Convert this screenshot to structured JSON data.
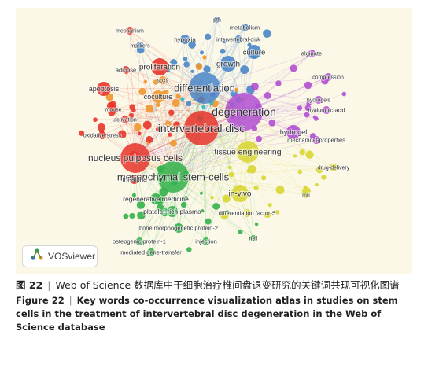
{
  "chart_data": {
    "type": "network",
    "cluster_colors": {
      "red": "#e8342a",
      "green": "#33b14a",
      "blue": "#4a86c8",
      "yellow": "#d8d632",
      "purple": "#b14fd1",
      "orange": "#f0962e",
      "cyan": "#2fb6c6"
    },
    "keywords": [
      {
        "label": "degeneration",
        "cluster": "purple"
      },
      {
        "label": "intervertebral disc",
        "cluster": "red"
      },
      {
        "label": "differentiation",
        "cluster": "blue"
      },
      {
        "label": "mesenchymal stem-cells",
        "cluster": "green"
      },
      {
        "label": "nucleus pulposus cells",
        "cluster": "red"
      },
      {
        "label": "tissue engineering",
        "cluster": "yellow"
      },
      {
        "label": "in-vivo",
        "cluster": "yellow"
      },
      {
        "label": "proliferation",
        "cluster": "red"
      },
      {
        "label": "growth",
        "cluster": "blue"
      },
      {
        "label": "culture",
        "cluster": "blue"
      },
      {
        "label": "hydrogel",
        "cluster": "purple"
      },
      {
        "label": "apoptosis",
        "cluster": "red"
      },
      {
        "label": "coculture",
        "cluster": "orange"
      },
      {
        "label": "mechanism",
        "cluster": "red"
      },
      {
        "label": "markers",
        "cluster": "blue"
      },
      {
        "label": "hypoxia",
        "cluster": "blue"
      },
      {
        "label": "pth",
        "cluster": "blue"
      },
      {
        "label": "metabolism",
        "cluster": "blue"
      },
      {
        "label": "intervertebral-disk",
        "cluster": "blue"
      },
      {
        "label": "alginate",
        "cluster": "purple"
      },
      {
        "label": "adipose",
        "cluster": "red"
      },
      {
        "label": "sox9",
        "cluster": "orange"
      },
      {
        "label": "compression",
        "cluster": "purple"
      },
      {
        "label": "hydrogels",
        "cluster": "purple"
      },
      {
        "label": "hyaluronic-acid",
        "cluster": "purple"
      },
      {
        "label": "mouse",
        "cluster": "red"
      },
      {
        "label": "activation",
        "cluster": "red"
      },
      {
        "label": "oxidative stress",
        "cluster": "red"
      },
      {
        "label": "mechanical-properties",
        "cluster": "purple"
      },
      {
        "label": "drug-delivery",
        "cluster": "yellow"
      },
      {
        "label": "tnf-alpha",
        "cluster": "red"
      },
      {
        "label": "mri",
        "cluster": "yellow"
      },
      {
        "label": "regenerative medicine",
        "cluster": "green"
      },
      {
        "label": "platelet-rich plasma",
        "cluster": "green"
      },
      {
        "label": "differentiation factor-5",
        "cluster": "yellow"
      },
      {
        "label": "bone morphogenetic protein-2",
        "cluster": "green"
      },
      {
        "label": "osteogenic protein-1",
        "cluster": "green"
      },
      {
        "label": "injection",
        "cluster": "green"
      },
      {
        "label": "nell",
        "cluster": "green"
      },
      {
        "label": "mediated gene-transfer",
        "cluster": "green"
      }
    ]
  },
  "logo": {
    "text": "VOSviewer",
    "icon": "vosviewer-logo-icon"
  },
  "caption": {
    "cn_number": "图 22",
    "cn_separator": "|",
    "cn_text": "Web of Science 数据库中干细胞治疗椎间盘退变研究的关键词共现可视化图谱",
    "en_number": "Figure 22",
    "en_separator": "|",
    "en_text": "Key words co-occurrence visualization atlas in studies on stem cells in the treatment of intervertebral disc degeneration in the Web of Science database"
  }
}
